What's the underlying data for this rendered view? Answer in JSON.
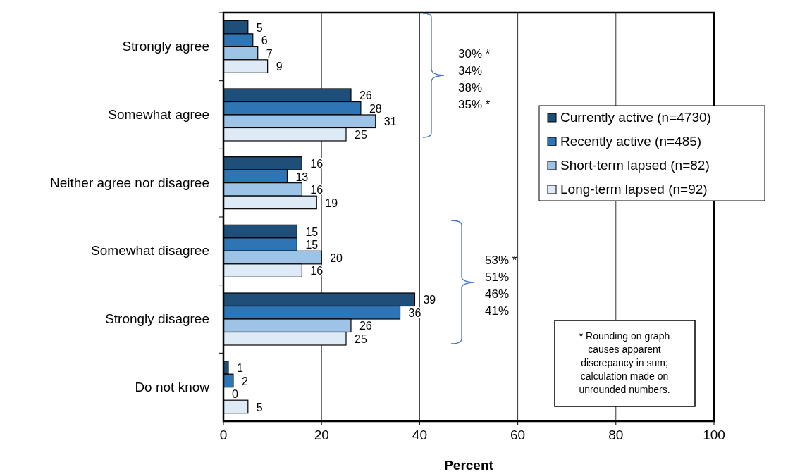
{
  "chart_data": {
    "type": "bar",
    "orientation": "horizontal",
    "xlabel": "Percent",
    "categories": [
      "Strongly agree",
      "Somewhat agree",
      "Neither agree nor disagree",
      "Somewhat disagree",
      "Strongly disagree",
      "Do not know"
    ],
    "series": [
      {
        "name": "Currently active (n=4730)",
        "color": "#1f4e79",
        "values": [
          5,
          26,
          16,
          15,
          39,
          1
        ]
      },
      {
        "name": "Recently active (n=485)",
        "color": "#2e75b6",
        "values": [
          6,
          28,
          13,
          15,
          36,
          2
        ]
      },
      {
        "name": "Short-term lapsed (n=82)",
        "color": "#9dc3e6",
        "values": [
          7,
          31,
          16,
          20,
          26,
          0
        ]
      },
      {
        "name": "Long-term lapsed (n=92)",
        "color": "#deebf7",
        "values": [
          9,
          25,
          19,
          16,
          25,
          5
        ]
      }
    ],
    "xlim": [
      0,
      100
    ],
    "xticks": [
      0,
      20,
      40,
      60,
      80,
      100
    ],
    "grid": "x",
    "legend": "right",
    "data_labels": true,
    "annotations": [
      "30% *",
      "34%",
      "38%",
      "35% *",
      "53% *",
      "51%",
      "46%",
      "41%",
      "* Rounding on graph causes apparent discrepancy in sum; calculation made on unrounded numbers."
    ]
  }
}
